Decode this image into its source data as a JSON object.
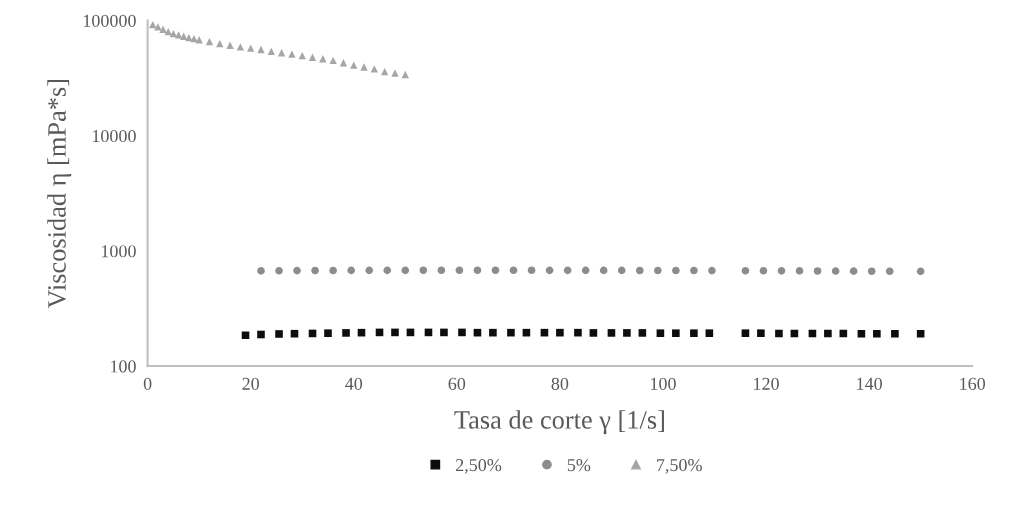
{
  "chart_data": {
    "type": "scatter",
    "xlabel": "Tasa de corte γ [1/s]",
    "ylabel": "Viscosidad η [mPa*s]",
    "log": "y",
    "xlim": [
      0,
      160
    ],
    "xticks": [
      0,
      20,
      40,
      60,
      80,
      100,
      120,
      140,
      160
    ],
    "ylim": [
      100,
      100000
    ],
    "yticks": [
      100,
      1000,
      10000,
      100000
    ],
    "grid": false,
    "legend": "bottom",
    "series": [
      {
        "name": "2,50%",
        "color": "#0d0d0d",
        "marker": "square",
        "x": [
          19,
          22,
          25.5,
          28.5,
          32,
          35,
          38.5,
          41.5,
          45,
          48,
          51,
          54.5,
          57.5,
          61,
          64,
          67,
          70.5,
          73.5,
          77,
          80,
          83.5,
          86.5,
          90,
          93,
          96,
          99.5,
          102.5,
          106,
          109,
          116,
          119,
          122.5,
          125.5,
          129,
          132,
          135,
          138.5,
          141.5,
          145,
          150
        ],
        "values": [
          185,
          188,
          190,
          191,
          192,
          193,
          194,
          195,
          196,
          196,
          196,
          196,
          196,
          196,
          195,
          195,
          195,
          195,
          195,
          195,
          195,
          194,
          194,
          194,
          194,
          193,
          193,
          193,
          193,
          193,
          193,
          192,
          192,
          192,
          192,
          192,
          191,
          191,
          191,
          191
        ]
      },
      {
        "name": "5%",
        "color": "#8c8c8c",
        "marker": "circle",
        "x": [
          22,
          25.5,
          29,
          32.5,
          36,
          39.5,
          43,
          46.5,
          50,
          53.5,
          57,
          60.5,
          64,
          67.5,
          71,
          74.5,
          78,
          81.5,
          85,
          88.5,
          92,
          95.5,
          99,
          102.5,
          106,
          109.5,
          116,
          119.5,
          123,
          126.5,
          130,
          133.5,
          137,
          140.5,
          144,
          150
        ],
        "values": [
          670,
          672,
          674,
          675,
          676,
          677,
          678,
          678,
          678,
          679,
          679,
          679,
          679,
          679,
          679,
          679,
          678,
          678,
          678,
          677,
          677,
          676,
          676,
          675,
          675,
          674,
          673,
          672,
          671,
          670,
          669,
          668,
          667,
          666,
          665,
          664
        ]
      },
      {
        "name": "7,50%",
        "color": "#a6a6a6",
        "marker": "triangle",
        "x": [
          1,
          2,
          3,
          4,
          5,
          6,
          7,
          8,
          9,
          10,
          12,
          14,
          16,
          18,
          20,
          22,
          24,
          26,
          28,
          30,
          32,
          34,
          36,
          38,
          40,
          42,
          44,
          46,
          48,
          50
        ],
        "values": [
          92000,
          88000,
          84000,
          80000,
          77000,
          75000,
          73000,
          71000,
          69500,
          68000,
          65500,
          63000,
          61000,
          59000,
          57500,
          56000,
          54000,
          52500,
          51000,
          49500,
          48000,
          46500,
          45000,
          43000,
          41000,
          39500,
          38000,
          36000,
          35000,
          34000
        ]
      }
    ]
  }
}
